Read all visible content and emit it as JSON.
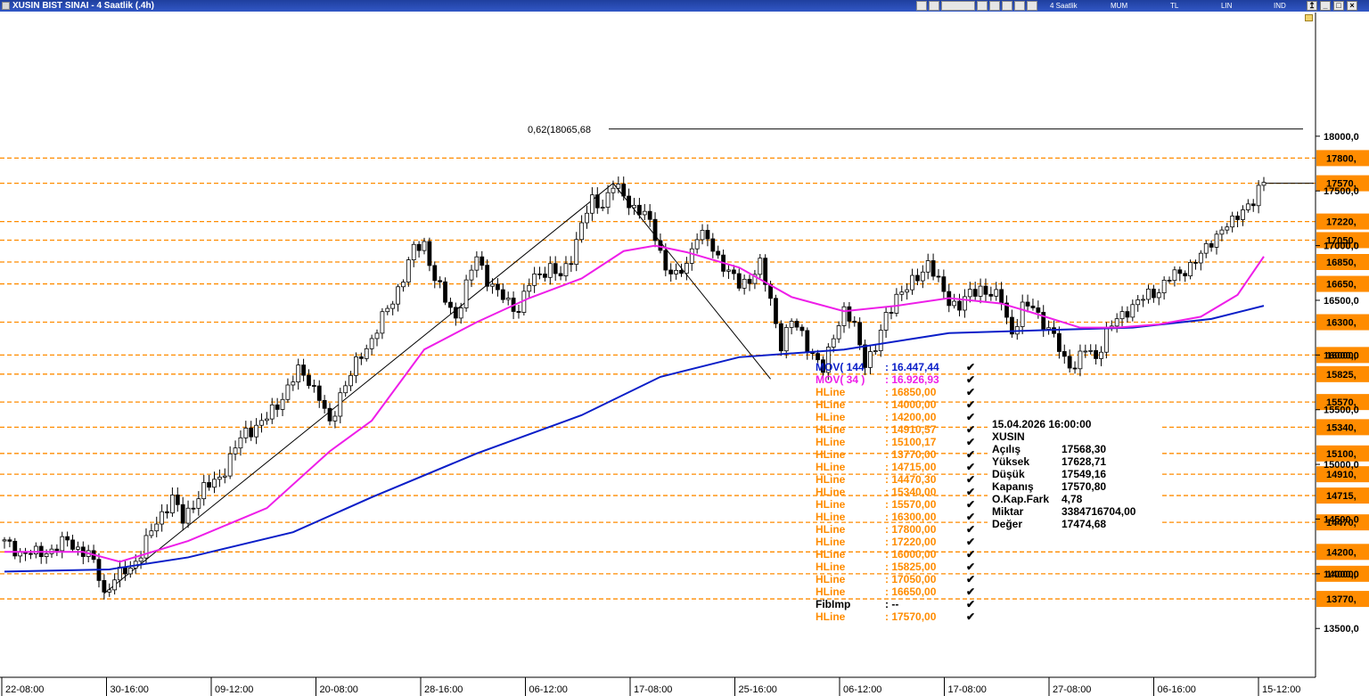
{
  "window": {
    "title": "XUSIN BIST SINAI - 4 Saatlik (.4h)",
    "toolbar": [
      "4 Saatlik",
      "MUM",
      "TL",
      "LIN",
      "IND"
    ],
    "colors": {
      "bar": "#2a4cb5",
      "accent": "#ff8c00"
    }
  },
  "chart_data": {
    "type": "candlestick",
    "price_axis": {
      "range": [
        13400,
        18100
      ],
      "labels": [
        {
          "v": 18000,
          "t": "18000,0"
        },
        {
          "v": 17500,
          "t": "17500,0"
        },
        {
          "v": 17000,
          "t": "17000,0"
        },
        {
          "v": 16500,
          "t": "16500,0"
        },
        {
          "v": 16000,
          "t": "16000,0"
        },
        {
          "v": 15500,
          "t": "15500,0"
        },
        {
          "v": 15000,
          "t": "15000,0"
        },
        {
          "v": 14500,
          "t": "14500,0"
        },
        {
          "v": 14000,
          "t": "14000,0"
        },
        {
          "v": 13500,
          "t": "13500,0"
        }
      ]
    },
    "time_axis": [
      "22-08:00",
      "30-16:00",
      "09-12:00",
      "20-08:00",
      "28-16:00",
      "06-12:00",
      "17-08:00",
      "25-16:00",
      "06-12:00",
      "17-08:00",
      "27-08:00",
      "06-16:00",
      "15-12:00"
    ],
    "hlines": [
      {
        "v": 17800,
        "t": "17800,"
      },
      {
        "v": 17570,
        "t": "17570,"
      },
      {
        "v": 17220,
        "t": "17220,"
      },
      {
        "v": 17050,
        "t": "17050,"
      },
      {
        "v": 16850,
        "t": "16850,"
      },
      {
        "v": 16650,
        "t": "16650,"
      },
      {
        "v": 16300,
        "t": "16300,"
      },
      {
        "v": 16000,
        "t": "16000,"
      },
      {
        "v": 15825,
        "t": "15825,"
      },
      {
        "v": 15570,
        "t": "15570,"
      },
      {
        "v": 15340,
        "t": "15340,"
      },
      {
        "v": 15100,
        "t": "15100,"
      },
      {
        "v": 14910,
        "t": "14910,"
      },
      {
        "v": 14715,
        "t": "14715,"
      },
      {
        "v": 14470,
        "t": "14470,"
      },
      {
        "v": 14200,
        "t": "14200,"
      },
      {
        "v": 14000,
        "t": "14000,"
      },
      {
        "v": 13770,
        "t": "13770,"
      }
    ],
    "fib": {
      "label": "0,62(18065,68",
      "v": 18065.68
    },
    "close_path": [
      [
        0,
        14280
      ],
      [
        3,
        14200
      ],
      [
        6,
        14180
      ],
      [
        9,
        14220
      ],
      [
        12,
        14300
      ],
      [
        14,
        14230
      ],
      [
        16,
        14180
      ],
      [
        18,
        13980
      ],
      [
        19,
        13820
      ],
      [
        21,
        13960
      ],
      [
        24,
        14050
      ],
      [
        26,
        14200
      ],
      [
        28,
        14380
      ],
      [
        30,
        14550
      ],
      [
        32,
        14700
      ],
      [
        34,
        14480
      ],
      [
        36,
        14650
      ],
      [
        38,
        14780
      ],
      [
        40,
        14830
      ],
      [
        42,
        14960
      ],
      [
        44,
        15150
      ],
      [
        46,
        15300
      ],
      [
        48,
        15350
      ],
      [
        50,
        15420
      ],
      [
        52,
        15550
      ],
      [
        54,
        15700
      ],
      [
        56,
        15850
      ],
      [
        58,
        15780
      ],
      [
        60,
        15610
      ],
      [
        62,
        15350
      ],
      [
        64,
        15650
      ],
      [
        66,
        15820
      ],
      [
        68,
        16000
      ],
      [
        70,
        16150
      ],
      [
        72,
        16330
      ],
      [
        74,
        16500
      ],
      [
        76,
        16720
      ],
      [
        78,
        16960
      ],
      [
        80,
        17020
      ],
      [
        82,
        16700
      ],
      [
        84,
        16500
      ],
      [
        86,
        16350
      ],
      [
        88,
        16630
      ],
      [
        90,
        16900
      ],
      [
        92,
        16700
      ],
      [
        94,
        16560
      ],
      [
        96,
        16480
      ],
      [
        98,
        16420
      ],
      [
        100,
        16650
      ],
      [
        102,
        16750
      ],
      [
        104,
        16800
      ],
      [
        106,
        16700
      ],
      [
        108,
        16900
      ],
      [
        110,
        17200
      ],
      [
        112,
        17400
      ],
      [
        114,
        17380
      ],
      [
        116,
        17550
      ],
      [
        118,
        17450
      ],
      [
        120,
        17350
      ],
      [
        122,
        17280
      ],
      [
        124,
        17100
      ],
      [
        126,
        16800
      ],
      [
        128,
        16700
      ],
      [
        130,
        16850
      ],
      [
        132,
        17100
      ],
      [
        134,
        17050
      ],
      [
        136,
        16900
      ],
      [
        138,
        16750
      ],
      [
        140,
        16640
      ],
      [
        142,
        16700
      ],
      [
        144,
        16820
      ],
      [
        146,
        16500
      ],
      [
        148,
        16100
      ],
      [
        150,
        16300
      ],
      [
        152,
        16200
      ],
      [
        154,
        16000
      ],
      [
        156,
        15850
      ],
      [
        158,
        16200
      ],
      [
        160,
        16400
      ],
      [
        162,
        16250
      ],
      [
        164,
        15950
      ],
      [
        166,
        16050
      ],
      [
        168,
        16350
      ],
      [
        170,
        16550
      ],
      [
        172,
        16600
      ],
      [
        174,
        16720
      ],
      [
        176,
        16850
      ],
      [
        178,
        16650
      ],
      [
        180,
        16500
      ],
      [
        182,
        16450
      ],
      [
        184,
        16550
      ],
      [
        186,
        16620
      ],
      [
        188,
        16550
      ],
      [
        190,
        16500
      ],
      [
        192,
        16200
      ],
      [
        194,
        16420
      ],
      [
        196,
        16450
      ],
      [
        198,
        16300
      ],
      [
        200,
        16150
      ],
      [
        202,
        15960
      ],
      [
        204,
        15900
      ],
      [
        206,
        16050
      ],
      [
        208,
        15980
      ],
      [
        210,
        16200
      ],
      [
        212,
        16320
      ],
      [
        214,
        16420
      ],
      [
        216,
        16480
      ],
      [
        218,
        16550
      ],
      [
        220,
        16600
      ],
      [
        222,
        16700
      ],
      [
        224,
        16750
      ],
      [
        226,
        16820
      ],
      [
        228,
        16900
      ],
      [
        230,
        17050
      ],
      [
        232,
        17150
      ],
      [
        234,
        17200
      ],
      [
        236,
        17350
      ],
      [
        238,
        17400
      ],
      [
        240,
        17570
      ]
    ],
    "series": [
      {
        "name": "MOV( 144 : 16.447,44",
        "color": "#0a1ec8",
        "path": [
          [
            0,
            14020
          ],
          [
            20,
            14040
          ],
          [
            35,
            14150
          ],
          [
            55,
            14380
          ],
          [
            70,
            14700
          ],
          [
            90,
            15100
          ],
          [
            110,
            15450
          ],
          [
            125,
            15800
          ],
          [
            140,
            15980
          ],
          [
            160,
            16050
          ],
          [
            180,
            16200
          ],
          [
            200,
            16230
          ],
          [
            215,
            16250
          ],
          [
            230,
            16330
          ],
          [
            240,
            16450
          ]
        ]
      },
      {
        "name": "MOV( 34 ) : 16.926,93",
        "color": "#ee1ee8",
        "path": [
          [
            0,
            14200
          ],
          [
            15,
            14200
          ],
          [
            22,
            14110
          ],
          [
            35,
            14300
          ],
          [
            50,
            14600
          ],
          [
            62,
            15120
          ],
          [
            70,
            15400
          ],
          [
            80,
            16050
          ],
          [
            90,
            16300
          ],
          [
            100,
            16520
          ],
          [
            110,
            16700
          ],
          [
            118,
            16950
          ],
          [
            124,
            17000
          ],
          [
            130,
            16940
          ],
          [
            140,
            16800
          ],
          [
            150,
            16530
          ],
          [
            160,
            16400
          ],
          [
            170,
            16450
          ],
          [
            180,
            16520
          ],
          [
            190,
            16470
          ],
          [
            195,
            16400
          ],
          [
            205,
            16250
          ],
          [
            212,
            16250
          ],
          [
            220,
            16280
          ],
          [
            228,
            16350
          ],
          [
            235,
            16550
          ],
          [
            240,
            16900
          ]
        ]
      }
    ],
    "legend": [
      {
        "k": "MOV( 144",
        "v": ": 16.447,44",
        "c": "#0a1ec8"
      },
      {
        "k": "MOV( 34 )",
        "v": ": 16.926,93",
        "c": "#ee1ee8"
      },
      {
        "k": "HLine",
        "v": ": 16850,00",
        "c": "#ff8c00"
      },
      {
        "k": "HLine",
        "v": ": 14000,00",
        "c": "#ff8c00"
      },
      {
        "k": "HLine",
        "v": ": 14200,00",
        "c": "#ff8c00"
      },
      {
        "k": "HLine",
        "v": ": 14910,57",
        "c": "#ff8c00"
      },
      {
        "k": "HLine",
        "v": ": 15100,17",
        "c": "#ff8c00"
      },
      {
        "k": "HLine",
        "v": ": 13770,00",
        "c": "#ff8c00"
      },
      {
        "k": "HLine",
        "v": ": 14715,00",
        "c": "#ff8c00"
      },
      {
        "k": "HLine",
        "v": ": 14470,30",
        "c": "#ff8c00"
      },
      {
        "k": "HLine",
        "v": ": 15340,00",
        "c": "#ff8c00"
      },
      {
        "k": "HLine",
        "v": ": 15570,00",
        "c": "#ff8c00"
      },
      {
        "k": "HLine",
        "v": ": 16300,00",
        "c": "#ff8c00"
      },
      {
        "k": "HLine",
        "v": ": 17800,00",
        "c": "#ff8c00"
      },
      {
        "k": "HLine",
        "v": ": 17220,00",
        "c": "#ff8c00"
      },
      {
        "k": "HLine",
        "v": ": 16000,00",
        "c": "#ff8c00"
      },
      {
        "k": "HLine",
        "v": ": 15825,00",
        "c": "#ff8c00"
      },
      {
        "k": "HLine",
        "v": ": 17050,00",
        "c": "#ff8c00"
      },
      {
        "k": "HLine",
        "v": ": 16650,00",
        "c": "#ff8c00"
      },
      {
        "k": "FibImp",
        "v": ": --",
        "c": "#000000"
      },
      {
        "k": "HLine",
        "v": ": 17570,00",
        "c": "#ff8c00"
      }
    ],
    "info": {
      "datetime": "15.04.2026  16:00:00",
      "symbol": "XUSIN",
      "rows": [
        {
          "k": "Açılış",
          "v": "17568,30"
        },
        {
          "k": "Yüksek",
          "v": "17628,71"
        },
        {
          "k": "Düşük",
          "v": "17549,16"
        },
        {
          "k": "Kapanış",
          "v": "17570,80"
        },
        {
          "k": "O.Kap.Fark",
          "v": "4,78"
        },
        {
          "k": "Miktar",
          "v": "3384716704,00"
        },
        {
          "k": "Değer",
          "v": "17474,68"
        }
      ]
    }
  }
}
